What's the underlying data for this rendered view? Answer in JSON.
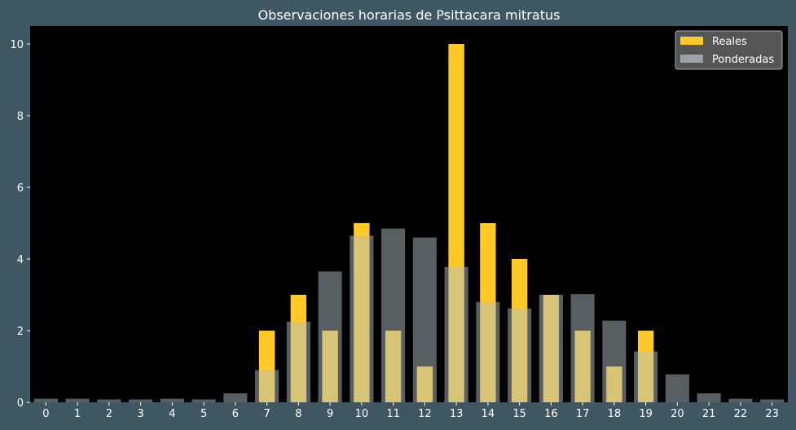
{
  "chart_data": {
    "type": "bar",
    "title": "Observaciones horarias de Psittacara mitratus",
    "xlabel": "",
    "ylabel": "",
    "categories": [
      "0",
      "1",
      "2",
      "3",
      "4",
      "5",
      "6",
      "7",
      "8",
      "9",
      "10",
      "11",
      "12",
      "13",
      "14",
      "15",
      "16",
      "17",
      "18",
      "19",
      "20",
      "21",
      "22",
      "23"
    ],
    "series": [
      {
        "name": "Reales",
        "color": "#ffca28",
        "values": [
          0,
          0,
          0,
          0,
          0,
          0,
          0,
          2,
          3,
          2,
          5,
          2,
          1,
          10,
          5,
          4,
          3,
          2,
          1,
          2,
          0,
          0,
          0,
          0
        ]
      },
      {
        "name": "Ponderadas",
        "color": "#b0bec5",
        "opacity": 0.5,
        "values": [
          0.1,
          0.1,
          0.08,
          0.08,
          0.1,
          0.08,
          0.25,
          0.9,
          2.25,
          3.65,
          4.65,
          4.85,
          4.6,
          3.78,
          2.8,
          2.62,
          3.0,
          3.02,
          2.28,
          1.42,
          0.78,
          0.25,
          0.1,
          0.08
        ]
      }
    ],
    "ylim": [
      0,
      10.5
    ],
    "yticks": [
      0,
      2,
      4,
      6,
      8,
      10
    ],
    "grid": false,
    "legend_position": "top-right",
    "colors": {
      "figure_background": "#3f5763",
      "plot_background": "#000000",
      "text": "#ffffff",
      "legend_background": "#555555"
    }
  }
}
